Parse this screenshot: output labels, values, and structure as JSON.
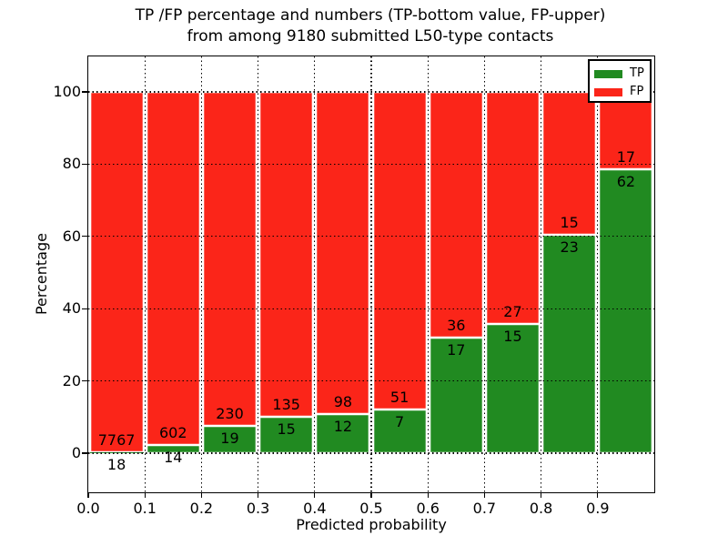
{
  "title": {
    "line1": "TP /FP percentage and numbers (TP-bottom value, FP-upper)",
    "line2": "from among 9180 submitted L50-type contacts"
  },
  "axes": {
    "xlabel": "Predicted probability",
    "ylabel": "Percentage",
    "x_tick_labels": [
      "0.0",
      "0.1",
      "0.2",
      "0.3",
      "0.4",
      "0.5",
      "0.6",
      "0.7",
      "0.8",
      "0.9"
    ],
    "x_tick_values": [
      0.0,
      0.1,
      0.2,
      0.3,
      0.4,
      0.5,
      0.6,
      0.7,
      0.8,
      0.9
    ],
    "y_tick_labels": [
      "0",
      "20",
      "40",
      "60",
      "80",
      "100"
    ],
    "y_tick_values": [
      0,
      20,
      40,
      60,
      80,
      100
    ],
    "grid_linestyle": "dotted",
    "grid_color": "#000000"
  },
  "legend": {
    "position": "upper right",
    "entries": [
      {
        "label": "TP",
        "color": "#218A21"
      },
      {
        "label": "FP",
        "color": "#FB2519"
      }
    ]
  },
  "chart_data": {
    "type": "bar",
    "stacked": true,
    "orientation": "vertical",
    "total_contacts": 9180,
    "xlim": [
      0.0,
      1.0
    ],
    "ylim": [
      -11,
      110
    ],
    "x_bin_edges": [
      0.0,
      0.1,
      0.2,
      0.3,
      0.4,
      0.5,
      0.6,
      0.7,
      0.8,
      0.9,
      1.0
    ],
    "categories": [
      "0.0-0.1",
      "0.1-0.2",
      "0.2-0.3",
      "0.3-0.4",
      "0.4-0.5",
      "0.5-0.6",
      "0.6-0.7",
      "0.7-0.8",
      "0.8-0.9",
      "0.9-1.0"
    ],
    "series": [
      {
        "name": "TP",
        "color": "#218A21",
        "counts": [
          18,
          14,
          19,
          15,
          12,
          7,
          17,
          15,
          23,
          62
        ],
        "percent": [
          0.231,
          2.273,
          7.631,
          10.0,
          10.909,
          12.069,
          32.075,
          35.714,
          60.526,
          78.481
        ]
      },
      {
        "name": "FP",
        "color": "#FB2519",
        "counts": [
          7767,
          602,
          230,
          135,
          98,
          51,
          36,
          27,
          15,
          17
        ],
        "percent": [
          99.769,
          97.727,
          92.369,
          90.0,
          89.091,
          87.931,
          67.925,
          64.286,
          39.474,
          21.519
        ]
      }
    ],
    "bar_edge_color": "#FFFFFF",
    "label_color": "#000000"
  }
}
